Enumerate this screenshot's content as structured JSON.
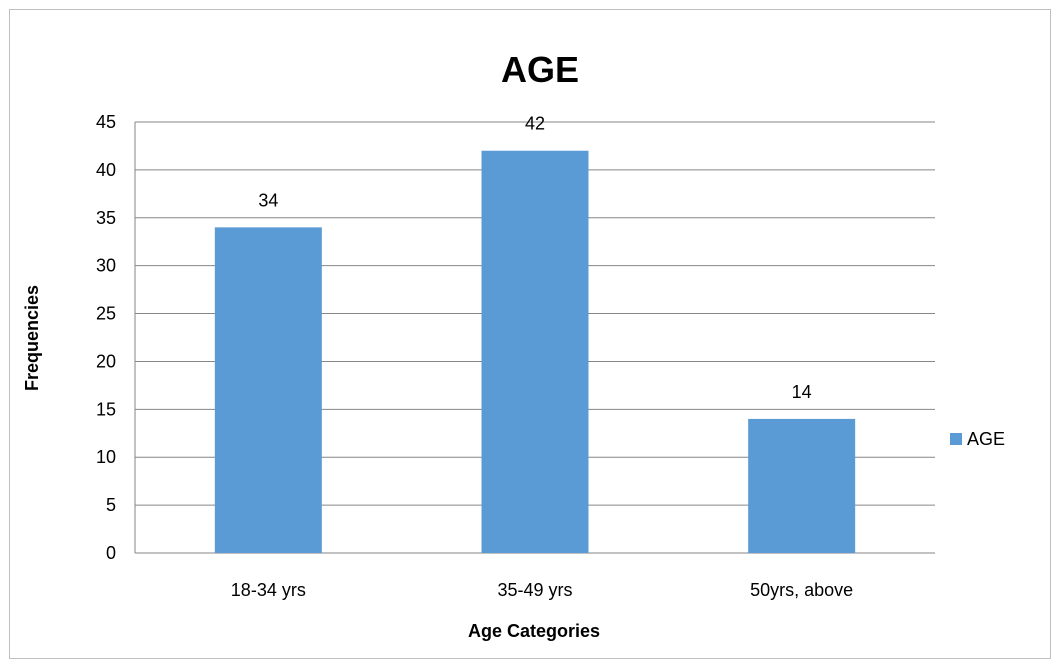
{
  "chart_data": {
    "type": "bar",
    "title": "AGE",
    "xlabel": "Age Categories",
    "ylabel": "Frequencies",
    "categories": [
      "18-34 yrs",
      "35-49 yrs",
      "50yrs, above"
    ],
    "series": [
      {
        "name": "AGE",
        "values": [
          34,
          42,
          14
        ],
        "color": "#5b9bd5"
      }
    ],
    "ylim": [
      0,
      45
    ],
    "yticks": [
      0,
      5,
      10,
      15,
      20,
      25,
      30,
      35,
      40,
      45
    ],
    "grid": true,
    "legend": "right"
  }
}
